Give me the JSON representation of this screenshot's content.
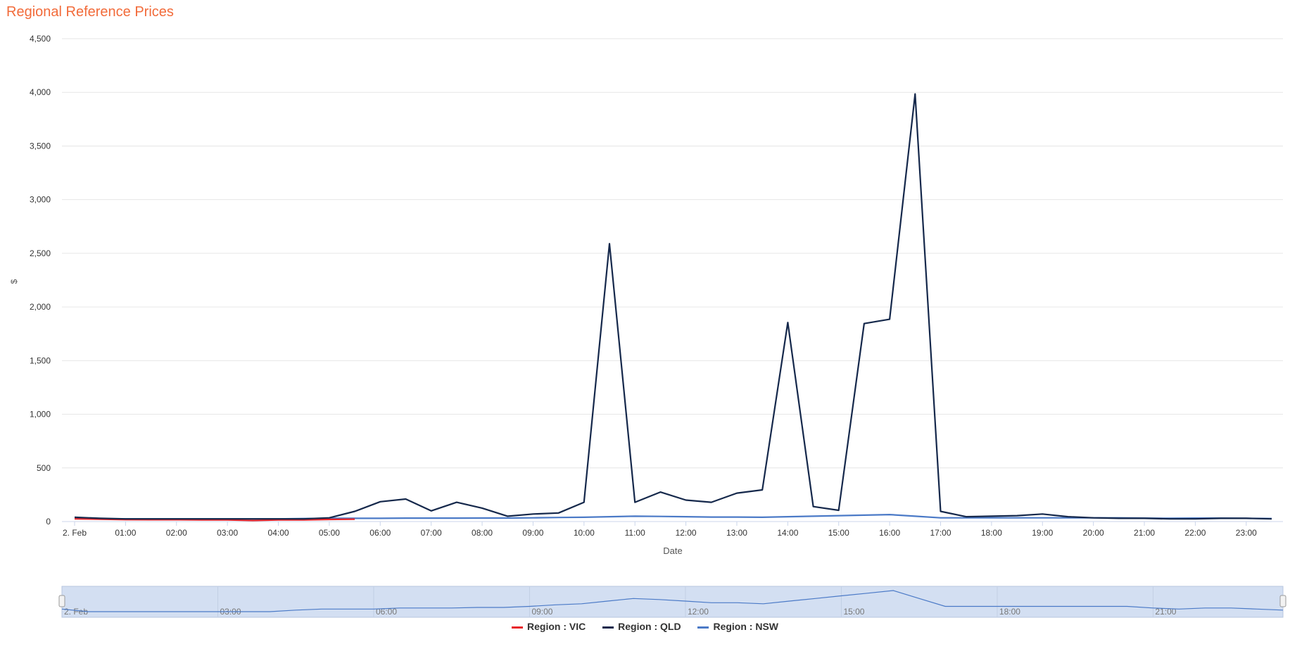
{
  "chart_data": {
    "type": "line",
    "title": "Regional Reference Prices",
    "xlabel": "Date",
    "ylabel": "$",
    "ylim": [
      0,
      4500
    ],
    "yticks": [
      "0",
      "500",
      "1,000",
      "1,500",
      "2,000",
      "2,500",
      "3,000",
      "3,500",
      "4,000",
      "4,500"
    ],
    "xtick_labels": [
      "2. Feb",
      "01:00",
      "02:00",
      "03:00",
      "04:00",
      "05:00",
      "06:00",
      "07:00",
      "08:00",
      "09:00",
      "10:00",
      "11:00",
      "12:00",
      "13:00",
      "14:00",
      "15:00",
      "16:00",
      "17:00",
      "18:00",
      "19:00",
      "20:00",
      "21:00",
      "22:00",
      "23:00"
    ],
    "x": [
      "00:00",
      "00:30",
      "01:00",
      "01:30",
      "02:00",
      "02:30",
      "03:00",
      "03:30",
      "04:00",
      "04:30",
      "05:00",
      "05:30",
      "06:00",
      "06:30",
      "07:00",
      "07:30",
      "08:00",
      "08:30",
      "09:00",
      "09:30",
      "10:00",
      "10:30",
      "11:00",
      "11:30",
      "12:00",
      "12:30",
      "13:00",
      "13:30",
      "14:00",
      "14:30",
      "15:00",
      "15:30",
      "16:00",
      "16:30",
      "17:00",
      "17:30",
      "18:00",
      "18:30",
      "19:00",
      "19:30",
      "20:00",
      "20:30",
      "21:00",
      "21:30",
      "22:00",
      "22:30",
      "23:00",
      "23:30"
    ],
    "series": [
      {
        "name": "Region : VIC",
        "color": "#e8262a",
        "values": [
          25,
          22,
          18,
          17,
          17,
          16,
          15,
          10,
          15,
          16,
          20,
          22,
          null,
          null,
          null,
          null,
          null,
          null,
          null,
          null,
          null,
          null,
          null,
          null,
          null,
          null,
          null,
          null,
          null,
          null,
          null,
          null,
          null,
          null,
          null,
          null,
          null,
          null,
          null,
          null,
          null,
          null,
          null,
          null,
          null,
          null,
          null,
          null
        ]
      },
      {
        "name": "Region : QLD",
        "color": "#15284b",
        "values": [
          40,
          30,
          25,
          25,
          25,
          25,
          25,
          25,
          25,
          25,
          35,
          95,
          185,
          210,
          100,
          180,
          125,
          50,
          70,
          80,
          180,
          2590,
          180,
          275,
          200,
          180,
          265,
          295,
          1855,
          140,
          105,
          1845,
          1885,
          3985,
          95,
          45,
          50,
          55,
          70,
          45,
          35,
          30,
          30,
          25,
          25,
          30,
          30,
          25
        ]
      },
      {
        "name": "Region : NSW",
        "color": "#4b7ac7",
        "values": [
          30,
          25,
          25,
          25,
          25,
          25,
          25,
          25,
          25,
          28,
          30,
          30,
          30,
          32,
          32,
          32,
          33,
          33,
          35,
          38,
          40,
          45,
          50,
          48,
          45,
          42,
          42,
          40,
          45,
          50,
          55,
          60,
          65,
          50,
          35,
          35,
          35,
          35,
          35,
          35,
          35,
          35,
          32,
          30,
          32,
          32,
          30,
          28
        ]
      }
    ],
    "navigator": {
      "tick_labels": [
        "2. Feb",
        "03:00",
        "06:00",
        "09:00",
        "12:00",
        "15:00",
        "18:00",
        "21:00"
      ]
    },
    "legend_position": "bottom-center",
    "grid": true
  }
}
